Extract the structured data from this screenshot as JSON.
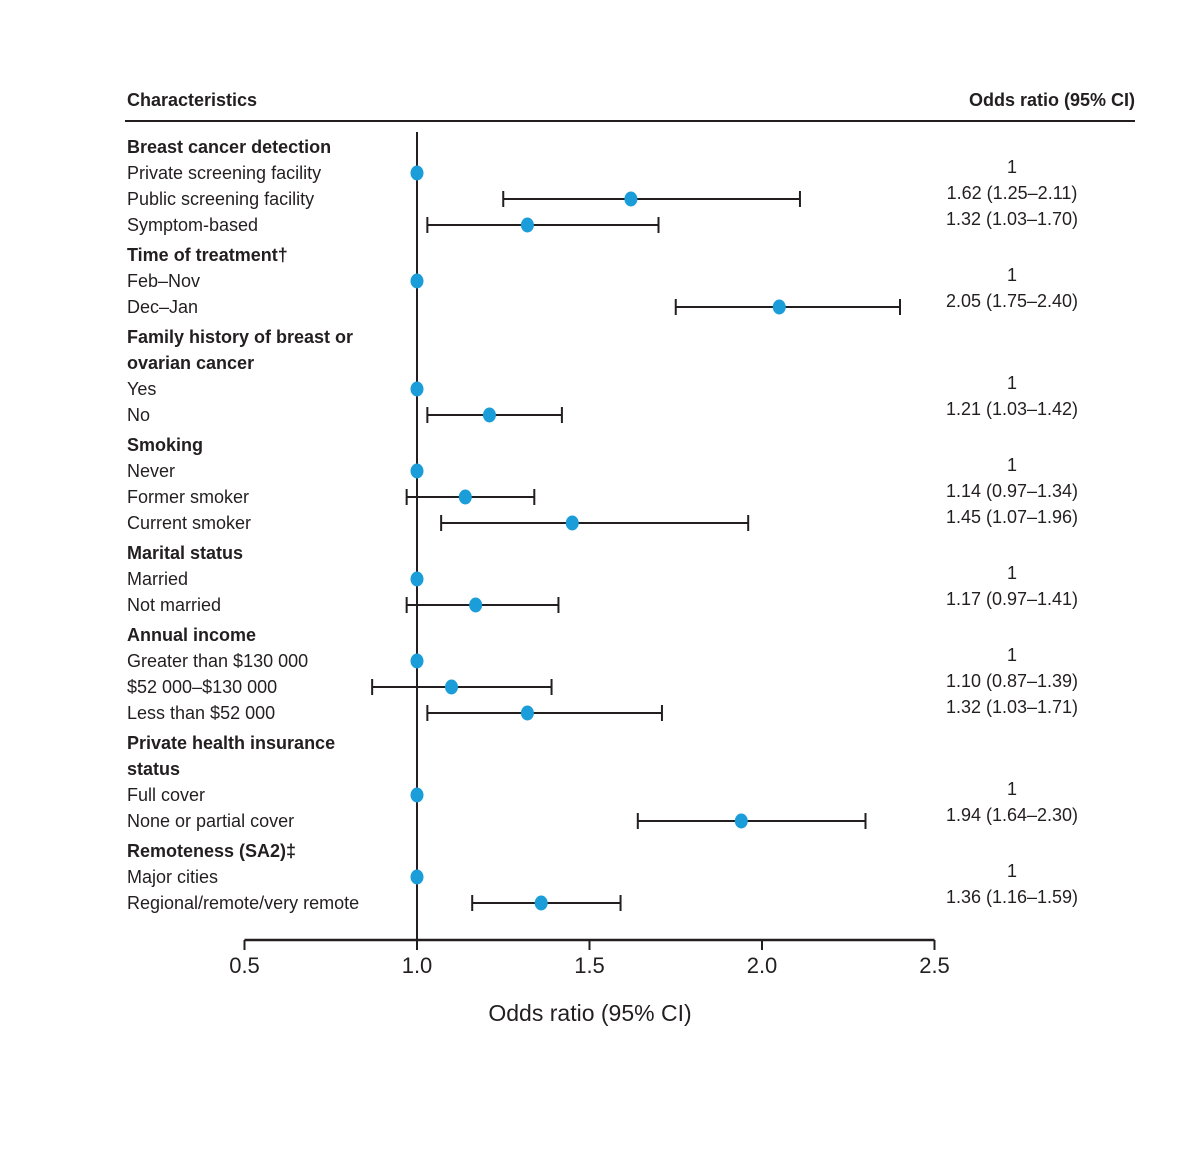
{
  "header": {
    "characteristics": "Characteristics",
    "odds_ratio_column": "Odds ratio (95% CI)"
  },
  "colors": {
    "text": "#231f20",
    "line": "#231f20",
    "marker": "#1b9dd9",
    "background": "#ffffff"
  },
  "chart_data": {
    "type": "scatter",
    "subtype": "forest-plot",
    "title": "",
    "xlabel": "Odds ratio (95% CI)",
    "x_axis": {
      "min": 0.5,
      "max": 2.5,
      "tick_values": [
        0.5,
        1.0,
        1.5,
        2.0,
        2.5
      ],
      "tick_labels": [
        "0.5",
        "1.0",
        "1.5",
        "2.0",
        "2.5"
      ],
      "reference_line": 1.0
    },
    "legend": null,
    "grid": false,
    "marker_color": "#1b9dd9",
    "rows": [
      {
        "kind": "section",
        "lines": [
          "Breast cancer detection"
        ]
      },
      {
        "kind": "item",
        "label": "Private screening facility",
        "or": 1.0,
        "is_reference": true,
        "value_text": "1"
      },
      {
        "kind": "item",
        "label": "Public screening facility",
        "or": 1.62,
        "ci_low": 1.25,
        "ci_high": 2.11,
        "value_text": "1.62 (1.25–2.11)"
      },
      {
        "kind": "item",
        "label": "Symptom-based",
        "or": 1.32,
        "ci_low": 1.03,
        "ci_high": 1.7,
        "value_text": "1.32 (1.03–1.70)"
      },
      {
        "kind": "section",
        "lines": [
          "Time of treatment†"
        ]
      },
      {
        "kind": "item",
        "label": "Feb–Nov",
        "or": 1.0,
        "is_reference": true,
        "value_text": "1"
      },
      {
        "kind": "item",
        "label": "Dec–Jan",
        "or": 2.05,
        "ci_low": 1.75,
        "ci_high": 2.4,
        "value_text": "2.05 (1.75–2.40)"
      },
      {
        "kind": "section",
        "lines": [
          "Family history of breast or",
          "ovarian cancer"
        ]
      },
      {
        "kind": "item",
        "label": "Yes",
        "or": 1.0,
        "is_reference": true,
        "value_text": "1"
      },
      {
        "kind": "item",
        "label": "No",
        "or": 1.21,
        "ci_low": 1.03,
        "ci_high": 1.42,
        "value_text": "1.21 (1.03–1.42)"
      },
      {
        "kind": "section",
        "lines": [
          "Smoking"
        ]
      },
      {
        "kind": "item",
        "label": "Never",
        "or": 1.0,
        "is_reference": true,
        "value_text": "1"
      },
      {
        "kind": "item",
        "label": "Former smoker",
        "or": 1.14,
        "ci_low": 0.97,
        "ci_high": 1.34,
        "value_text": "1.14 (0.97–1.34)"
      },
      {
        "kind": "item",
        "label": "Current smoker",
        "or": 1.45,
        "ci_low": 1.07,
        "ci_high": 1.96,
        "value_text": "1.45 (1.07–1.96)"
      },
      {
        "kind": "section",
        "lines": [
          "Marital status"
        ]
      },
      {
        "kind": "item",
        "label": "Married",
        "or": 1.0,
        "is_reference": true,
        "value_text": "1"
      },
      {
        "kind": "item",
        "label": "Not married",
        "or": 1.17,
        "ci_low": 0.97,
        "ci_high": 1.41,
        "value_text": "1.17 (0.97–1.41)"
      },
      {
        "kind": "section",
        "lines": [
          "Annual income"
        ]
      },
      {
        "kind": "item",
        "label": "Greater than $130 000",
        "or": 1.0,
        "is_reference": true,
        "value_text": "1"
      },
      {
        "kind": "item",
        "label": "$52 000–$130 000",
        "or": 1.1,
        "ci_low": 0.87,
        "ci_high": 1.39,
        "value_text": "1.10 (0.87–1.39)"
      },
      {
        "kind": "item",
        "label": "Less than $52 000",
        "or": 1.32,
        "ci_low": 1.03,
        "ci_high": 1.71,
        "value_text": "1.32 (1.03–1.71)"
      },
      {
        "kind": "section",
        "lines": [
          "Private health insurance",
          "status"
        ]
      },
      {
        "kind": "item",
        "label": "Full cover",
        "or": 1.0,
        "is_reference": true,
        "value_text": "1"
      },
      {
        "kind": "item",
        "label": "None or partial cover",
        "or": 1.94,
        "ci_low": 1.64,
        "ci_high": 2.3,
        "value_text": "1.94 (1.64–2.30)"
      },
      {
        "kind": "section",
        "lines": [
          "Remoteness (SA2)‡"
        ]
      },
      {
        "kind": "item",
        "label": "Major cities",
        "or": 1.0,
        "is_reference": true,
        "value_text": "1"
      },
      {
        "kind": "item",
        "label": "Regional/remote/very remote",
        "or": 1.36,
        "ci_low": 1.16,
        "ci_high": 1.59,
        "value_text": "1.36 (1.16–1.59)"
      }
    ]
  }
}
